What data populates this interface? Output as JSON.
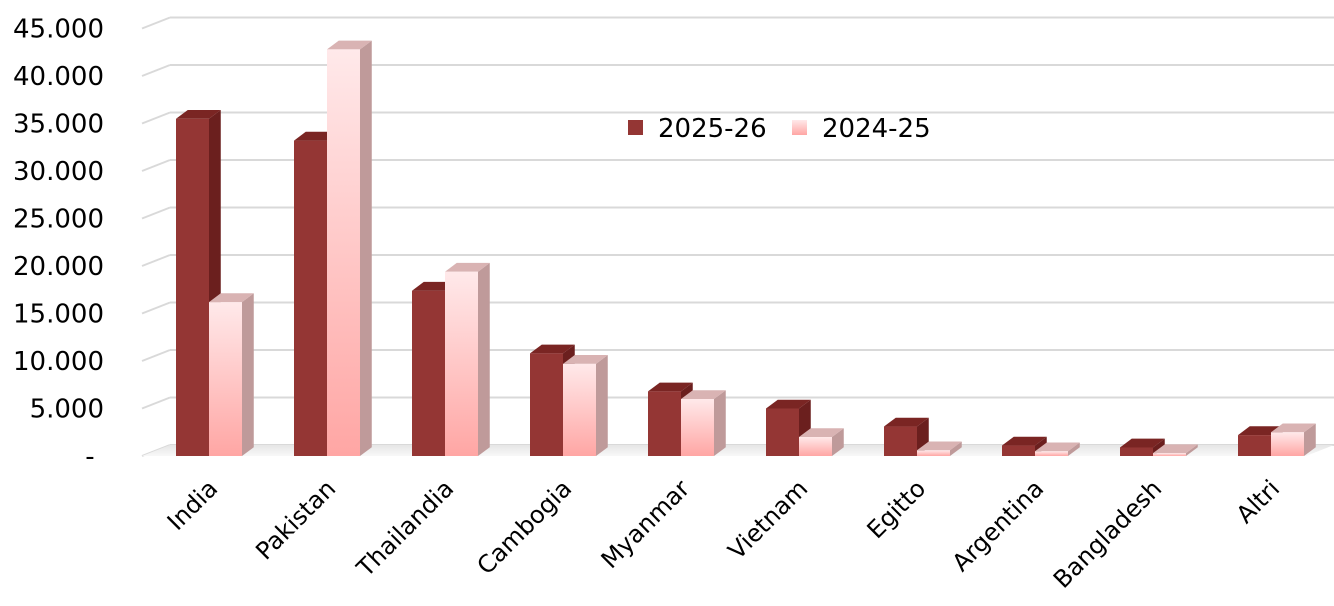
{
  "chart_data": {
    "type": "bar",
    "categories": [
      "India",
      "Pakistan",
      "Thailandia",
      "Cambogia",
      "Myanmar",
      "Vietnam",
      "Egitto",
      "Argentina",
      "Bangladesh",
      "Altri"
    ],
    "series": [
      {
        "name": "2025-26",
        "values": [
          35500,
          33200,
          17400,
          10800,
          6800,
          5000,
          3100,
          1100,
          900,
          2200
        ],
        "color": "#943634",
        "side_color": "#6b1f1e",
        "top_color": "#7a2523"
      },
      {
        "name": "2024-25",
        "values": [
          16200,
          42800,
          19400,
          9700,
          6000,
          2000,
          600,
          500,
          300,
          2500
        ],
        "color_top": "#ffe9ea",
        "color_bottom": "#ffa6a4",
        "side_color": "#bf9a9a",
        "top_color": "#d9b3b3"
      }
    ],
    "y_ticks": [
      {
        "value": 0,
        "label": "-"
      },
      {
        "value": 5000,
        "label": "5.000"
      },
      {
        "value": 10000,
        "label": "10.000"
      },
      {
        "value": 15000,
        "label": "15.000"
      },
      {
        "value": 20000,
        "label": "20.000"
      },
      {
        "value": 25000,
        "label": "25.000"
      },
      {
        "value": 30000,
        "label": "30.000"
      },
      {
        "value": 35000,
        "label": "35.000"
      },
      {
        "value": 40000,
        "label": "40.000"
      },
      {
        "value": 45000,
        "label": "45.000"
      }
    ],
    "ylim": [
      0,
      47000
    ],
    "grid": true,
    "legend_position": "top-center",
    "title": "",
    "xlabel": "",
    "ylabel": ""
  }
}
